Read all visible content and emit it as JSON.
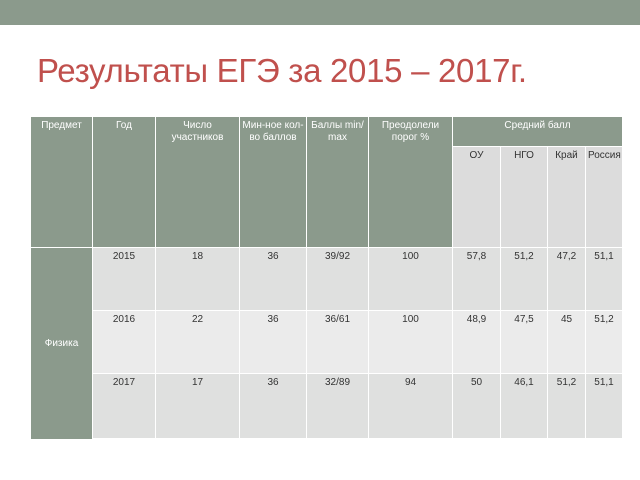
{
  "slide": {
    "title": "Результаты ЕГЭ за 2015 – 2017г."
  },
  "table": {
    "headers": {
      "subject": "Предмет",
      "year": "Год",
      "participants": "Число участников",
      "min_score": "Мин-ное кол-во баллов",
      "score_minmax": "Баллы min/ max",
      "passed": "Преодолели порог %",
      "avg_score": "Средний балл",
      "avg_sub": [
        "ОУ",
        "НГО",
        "Край",
        "Россия"
      ]
    },
    "subject_value": "Физика",
    "rows": [
      {
        "year": "2015",
        "participants": "18",
        "min_score": "36",
        "score_minmax": "39/92",
        "passed": "100",
        "ou": "57,8",
        "ngo": "51,2",
        "kray": "47,2",
        "russia": "51,1"
      },
      {
        "year": "2016",
        "participants": "22",
        "min_score": "36",
        "score_minmax": "36/61",
        "passed": "100",
        "ou": "48,9",
        "ngo": "47,5",
        "kray": "45",
        "russia": "51,2"
      },
      {
        "year": "2017",
        "participants": "17",
        "min_score": "36",
        "score_minmax": "32/89",
        "passed": "94",
        "ou": "50",
        "ngo": "46,1",
        "kray": "51,2",
        "russia": "51,1"
      }
    ]
  }
}
